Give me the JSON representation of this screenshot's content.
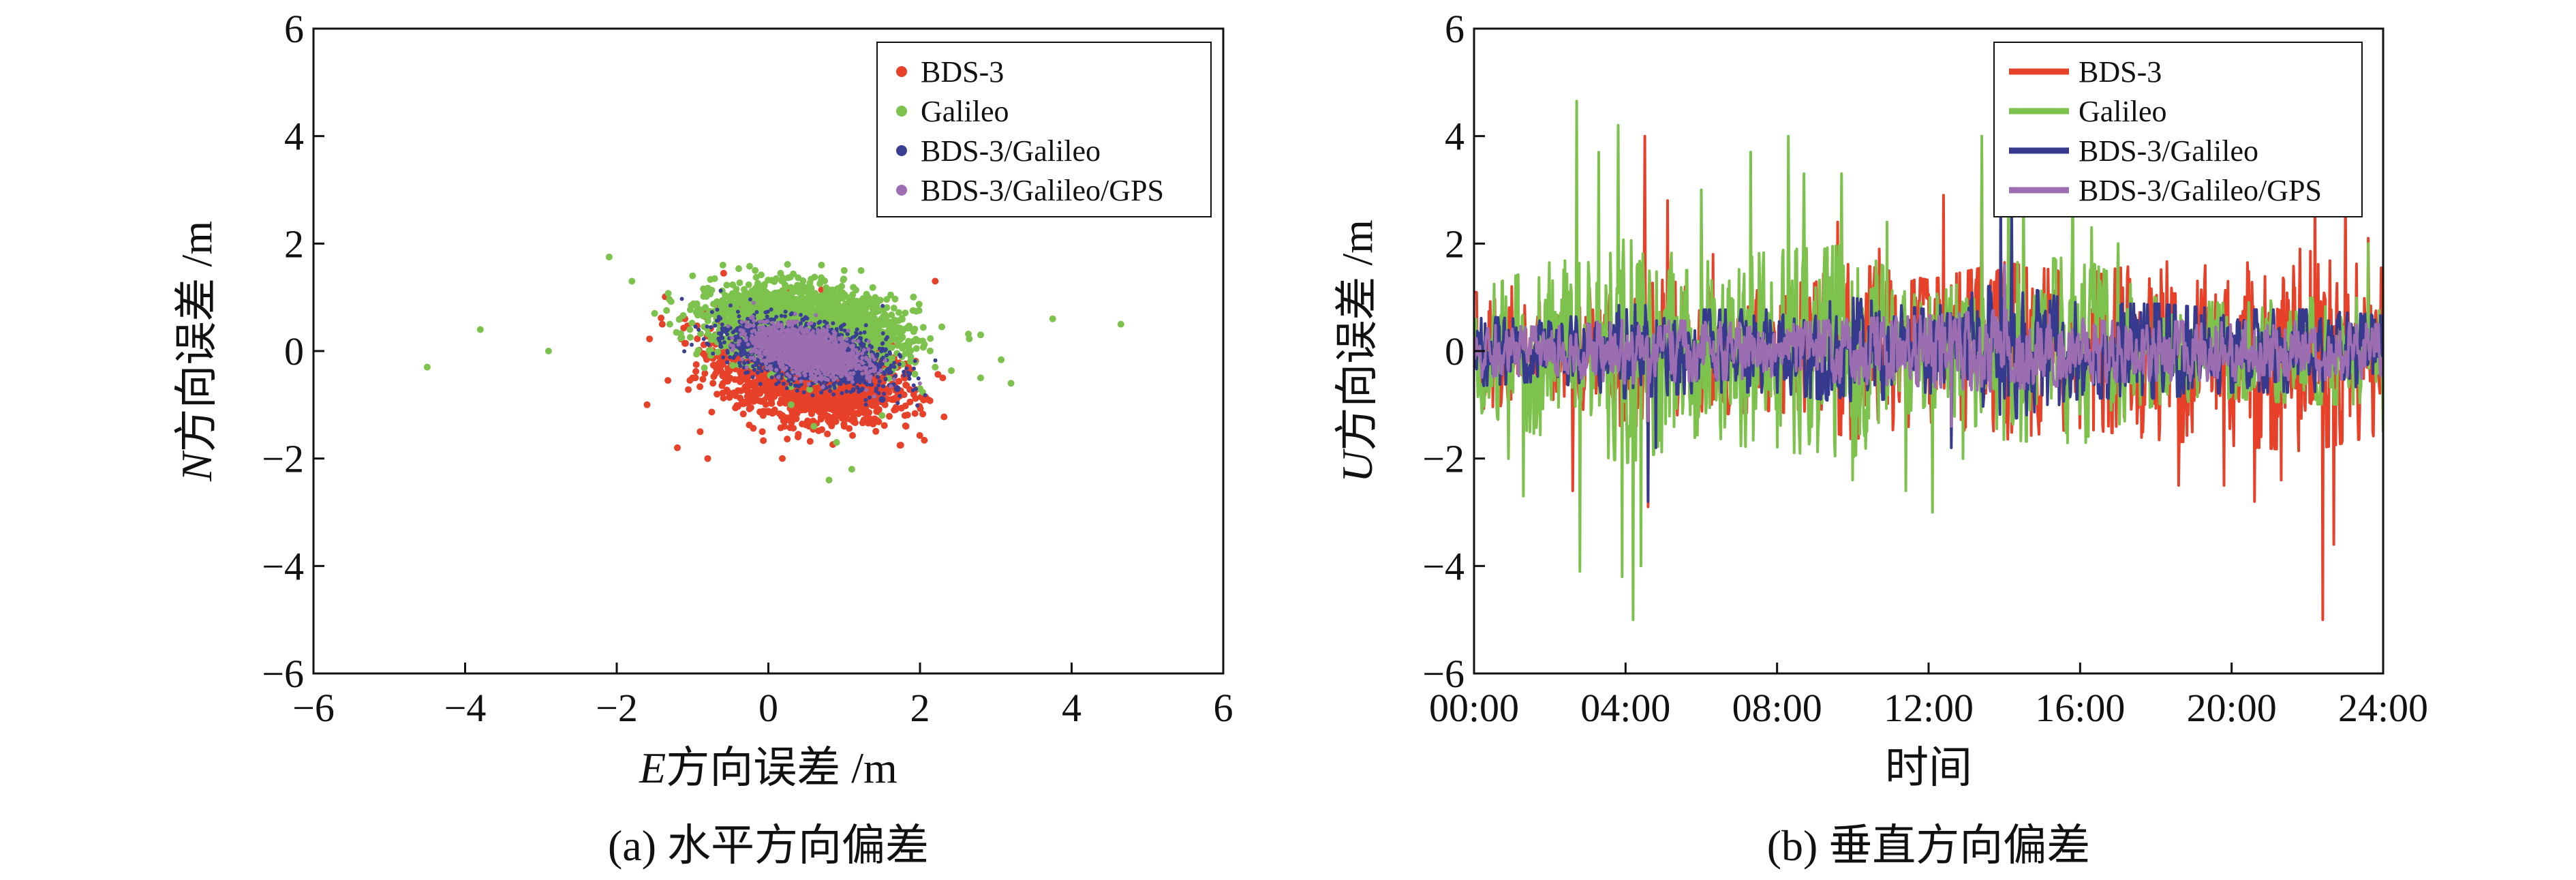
{
  "chart_data": [
    {
      "type": "scatter",
      "caption": "(a) 水平方向偏差",
      "xlabel": "E方向误差 /m",
      "xlabel_var": "E",
      "xlabel_rest": "方向误差 /m",
      "ylabel": "N方向误差 /m",
      "ylabel_var": "N",
      "ylabel_rest": "方向误差 /m",
      "xlim": [
        -6,
        6
      ],
      "ylim": [
        -6,
        6
      ],
      "xticks": [
        -6,
        -4,
        -2,
        0,
        2,
        4,
        6
      ],
      "yticks": [
        -6,
        -4,
        -2,
        0,
        2,
        4,
        6
      ],
      "xtick_labels": [
        "−6",
        "−4",
        "−2",
        "0",
        "2",
        "4",
        "6"
      ],
      "ytick_labels": [
        "−6",
        "−4",
        "−2",
        "0",
        "2",
        "4",
        "6"
      ],
      "legend_position": "top-right",
      "series": [
        {
          "name": "BDS-3",
          "color": "#e8412a",
          "cluster": {
            "cx": 0.5,
            "cy": -0.35,
            "sx": 0.55,
            "sy": 0.45,
            "rho": -0.3
          },
          "points": [
            [
              -1.6,
              -1.0
            ],
            [
              -1.2,
              -1.8
            ],
            [
              -0.8,
              -2.0
            ],
            [
              -0.9,
              -1.5
            ],
            [
              -1.4,
              0.5
            ],
            [
              -1.1,
              0.6
            ],
            [
              -0.7,
              0.3
            ],
            [
              2.2,
              1.3
            ],
            [
              2.3,
              -0.5
            ],
            [
              1.8,
              -1.2
            ],
            [
              1.4,
              -1.0
            ],
            [
              0.2,
              -1.3
            ],
            [
              -1.0,
              -0.5
            ],
            [
              1.0,
              -1.4
            ],
            [
              2.1,
              -0.9
            ]
          ]
        },
        {
          "name": "Galileo",
          "color": "#7cc24c",
          "cluster": {
            "cx": 0.5,
            "cy": 0.45,
            "sx": 0.6,
            "sy": 0.35,
            "rho": -0.2
          },
          "points": [
            [
              -4.5,
              -0.3
            ],
            [
              -3.8,
              0.4
            ],
            [
              -2.9,
              0.0
            ],
            [
              -2.1,
              1.75
            ],
            [
              -1.8,
              1.3
            ],
            [
              -1.5,
              0.7
            ],
            [
              -1.3,
              0.5
            ],
            [
              -1.0,
              1.4
            ],
            [
              -0.6,
              1.6
            ],
            [
              0.7,
              1.6
            ],
            [
              1.0,
              1.5
            ],
            [
              3.75,
              0.6
            ],
            [
              4.65,
              0.5
            ],
            [
              2.8,
              0.3
            ],
            [
              2.8,
              -0.5
            ],
            [
              3.2,
              -0.6
            ],
            [
              0.8,
              -2.4
            ],
            [
              1.1,
              -2.2
            ],
            [
              0.9,
              -1.7
            ],
            [
              0.6,
              -1.4
            ],
            [
              2.2,
              -0.3
            ],
            [
              2.0,
              -0.7
            ],
            [
              1.5,
              -1.2
            ],
            [
              0.3,
              -1.0
            ]
          ]
        },
        {
          "name": "BDS-3/Galileo",
          "color": "#3a3f94",
          "cluster": {
            "cx": 0.55,
            "cy": -0.05,
            "sx": 0.5,
            "sy": 0.3,
            "rho": -0.45
          },
          "points": [
            [
              1.5,
              -0.9
            ],
            [
              1.7,
              -0.7
            ],
            [
              -0.4,
              0.4
            ]
          ]
        },
        {
          "name": "BDS-3/Galileo/GPS",
          "color": "#9c6db0",
          "cluster": {
            "cx": 0.5,
            "cy": 0.0,
            "sx": 0.35,
            "sy": 0.22,
            "rho": -0.45
          },
          "points": []
        }
      ]
    },
    {
      "type": "line",
      "caption": "(b) 垂直方向偏差",
      "xlabel": "时间",
      "ylabel": "U方向误差 /m",
      "ylabel_var": "U",
      "ylabel_rest": "方向误差 /m",
      "xlim": [
        0,
        24
      ],
      "ylim": [
        -6,
        6
      ],
      "xticks": [
        0,
        4,
        8,
        12,
        16,
        20,
        24
      ],
      "yticks": [
        -6,
        -4,
        -2,
        0,
        2,
        4,
        6
      ],
      "xtick_labels": [
        "00:00",
        "04:00",
        "08:00",
        "12:00",
        "16:00",
        "20:00",
        "24:00"
      ],
      "ytick_labels": [
        "−6",
        "−4",
        "−2",
        "0",
        "2",
        "4",
        "6"
      ],
      "legend_position": "top-right",
      "series": [
        {
          "name": "BDS-3",
          "color": "#e8412a",
          "envelope": [
            [
              0,
              1.0
            ],
            [
              2,
              0.8
            ],
            [
              4,
              1.3
            ],
            [
              6,
              1.1
            ],
            [
              8,
              1.0
            ],
            [
              10,
              1.5
            ],
            [
              12,
              1.2
            ],
            [
              14,
              1.5
            ],
            [
              16,
              1.3
            ],
            [
              18,
              1.5
            ],
            [
              20,
              1.6
            ],
            [
              22,
              1.7
            ],
            [
              24,
              1.4
            ]
          ],
          "spikes": [
            [
              1.0,
              1.2
            ],
            [
              2.6,
              -2.6
            ],
            [
              4.5,
              4.0
            ],
            [
              4.6,
              -2.9
            ],
            [
              5.1,
              2.8
            ],
            [
              6.3,
              1.8
            ],
            [
              9.6,
              2.4
            ],
            [
              10.7,
              1.9
            ],
            [
              12.4,
              2.9
            ],
            [
              13.4,
              3.6
            ],
            [
              13.9,
              2.2
            ],
            [
              17.0,
              1.8
            ],
            [
              18.6,
              -2.5
            ],
            [
              19.8,
              -2.5
            ],
            [
              20.6,
              -2.8
            ],
            [
              21.3,
              -2.4
            ],
            [
              21.8,
              1.9
            ],
            [
              22.2,
              3.0
            ],
            [
              22.4,
              -5.0
            ],
            [
              22.7,
              -3.6
            ],
            [
              23.0,
              3.0
            ],
            [
              23.6,
              2.1
            ],
            [
              24.0,
              -1.5
            ]
          ]
        },
        {
          "name": "Galileo",
          "color": "#7cc24c",
          "envelope": [
            [
              0,
              1.0
            ],
            [
              2,
              1.5
            ],
            [
              4,
              1.9
            ],
            [
              6,
              1.5
            ],
            [
              8,
              1.7
            ],
            [
              10,
              1.8
            ],
            [
              12,
              0.9
            ],
            [
              14,
              1.5
            ],
            [
              16,
              1.6
            ],
            [
              18,
              0.9
            ],
            [
              20,
              0.8
            ],
            [
              22,
              0.9
            ],
            [
              24,
              0.9
            ]
          ],
          "spikes": [
            [
              0.9,
              -2.0
            ],
            [
              1.3,
              -2.7
            ],
            [
              2.7,
              4.65
            ],
            [
              2.8,
              -4.1
            ],
            [
              3.3,
              3.7
            ],
            [
              3.8,
              4.2
            ],
            [
              3.9,
              -4.2
            ],
            [
              4.2,
              -5.0
            ],
            [
              4.4,
              -4.0
            ],
            [
              6.0,
              3.0
            ],
            [
              7.3,
              3.7
            ],
            [
              8.3,
              4.0
            ],
            [
              8.7,
              3.3
            ],
            [
              9.7,
              3.3
            ],
            [
              10.0,
              -2.4
            ],
            [
              10.9,
              2.4
            ],
            [
              11.4,
              -2.6
            ],
            [
              12.1,
              -3.0
            ],
            [
              12.9,
              -2.0
            ],
            [
              13.4,
              4.0
            ],
            [
              14.1,
              3.9
            ],
            [
              14.5,
              3.3
            ],
            [
              15.8,
              3.6
            ],
            [
              16.3,
              2.3
            ],
            [
              17.0,
              2.0
            ],
            [
              23.6,
              2.0
            ],
            [
              24.0,
              -1.5
            ]
          ]
        },
        {
          "name": "BDS-3/Galileo",
          "color": "#363a8e",
          "envelope": [
            [
              0,
              0.6
            ],
            [
              2,
              0.5
            ],
            [
              4,
              0.8
            ],
            [
              6,
              0.7
            ],
            [
              8,
              0.7
            ],
            [
              10,
              0.9
            ],
            [
              12,
              0.7
            ],
            [
              14,
              1.2
            ],
            [
              16,
              0.8
            ],
            [
              18,
              0.8
            ],
            [
              20,
              0.7
            ],
            [
              22,
              0.7
            ],
            [
              24,
              0.6
            ]
          ],
          "spikes": [
            [
              4.6,
              -2.8
            ],
            [
              4.8,
              -1.8
            ],
            [
              12.6,
              -1.8
            ],
            [
              13.9,
              3.0
            ],
            [
              14.2,
              2.6
            ]
          ]
        },
        {
          "name": "BDS-3/Galileo/GPS",
          "color": "#9c6db0",
          "envelope": [
            [
              0,
              0.45
            ],
            [
              2,
              0.4
            ],
            [
              4,
              0.55
            ],
            [
              6,
              0.5
            ],
            [
              8,
              0.45
            ],
            [
              10,
              0.55
            ],
            [
              12,
              0.6
            ],
            [
              14,
              0.7
            ],
            [
              16,
              0.55
            ],
            [
              18,
              0.5
            ],
            [
              20,
              0.5
            ],
            [
              22,
              0.5
            ],
            [
              24,
              0.45
            ]
          ],
          "spikes": [
            [
              4.6,
              -1.3
            ],
            [
              12.6,
              -1.4
            ],
            [
              14.0,
              1.6
            ]
          ]
        }
      ]
    }
  ]
}
